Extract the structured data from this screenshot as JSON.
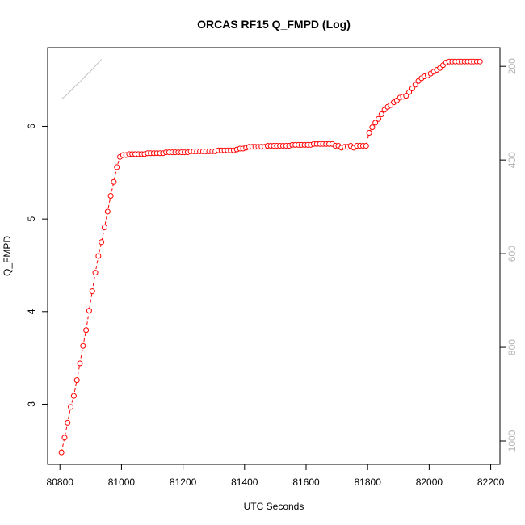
{
  "chart_data": {
    "type": "line",
    "title": "ORCAS RF15 Q_FMPD (Log)",
    "xlabel": "UTC Seconds",
    "ylabel": "Q_FMPD",
    "xlim": [
      80760,
      82230
    ],
    "ylim": [
      2.35,
      6.85
    ],
    "y2lim": [
      1050,
      160
    ],
    "x_ticks": [
      80800,
      81000,
      81200,
      81400,
      81600,
      81800,
      82000,
      82200
    ],
    "y_ticks": [
      3,
      4,
      5,
      6
    ],
    "y2_ticks": [
      200,
      400,
      600,
      800,
      1000
    ],
    "grid": false,
    "series": [
      {
        "color": "#ff0000",
        "marker": "open-circle",
        "line_style": "dashed",
        "axis": "left",
        "x": [
          80805,
          80815,
          80825,
          80835,
          80845,
          80855,
          80865,
          80875,
          80885,
          80895,
          80905,
          80915,
          80925,
          80935,
          80945,
          80955,
          80965,
          80975,
          80985,
          80995,
          81005,
          81015,
          81025,
          81035,
          81045,
          81055,
          81065,
          81075,
          81085,
          81095,
          81105,
          81115,
          81125,
          81135,
          81145,
          81155,
          81165,
          81175,
          81185,
          81195,
          81205,
          81215,
          81225,
          81235,
          81245,
          81255,
          81265,
          81275,
          81285,
          81295,
          81305,
          81315,
          81325,
          81335,
          81345,
          81355,
          81365,
          81375,
          81385,
          81395,
          81405,
          81415,
          81425,
          81435,
          81445,
          81455,
          81465,
          81475,
          81485,
          81495,
          81505,
          81515,
          81525,
          81535,
          81545,
          81555,
          81565,
          81575,
          81585,
          81595,
          81605,
          81615,
          81625,
          81635,
          81645,
          81655,
          81665,
          81675,
          81685,
          81695,
          81705,
          81715,
          81725,
          81735,
          81745,
          81755,
          81765,
          81775,
          81785,
          81795,
          81805,
          81815,
          81825,
          81835,
          81845,
          81855,
          81865,
          81875,
          81885,
          81895,
          81905,
          81915,
          81925,
          81935,
          81945,
          81955,
          81965,
          81975,
          81985,
          81995,
          82005,
          82015,
          82025,
          82035,
          82045,
          82055,
          82065,
          82075,
          82085,
          82095,
          82105,
          82115,
          82125,
          82135,
          82145,
          82155,
          82165
        ],
        "y": [
          2.48,
          2.64,
          2.8,
          2.97,
          3.09,
          3.26,
          3.44,
          3.63,
          3.8,
          4.01,
          4.22,
          4.42,
          4.6,
          4.75,
          4.91,
          5.08,
          5.25,
          5.4,
          5.56,
          5.67,
          5.69,
          5.69,
          5.7,
          5.7,
          5.7,
          5.7,
          5.7,
          5.7,
          5.71,
          5.71,
          5.71,
          5.71,
          5.71,
          5.71,
          5.72,
          5.72,
          5.72,
          5.72,
          5.72,
          5.72,
          5.72,
          5.72,
          5.73,
          5.73,
          5.73,
          5.73,
          5.73,
          5.73,
          5.73,
          5.73,
          5.73,
          5.74,
          5.74,
          5.74,
          5.74,
          5.74,
          5.74,
          5.75,
          5.76,
          5.76,
          5.77,
          5.78,
          5.78,
          5.78,
          5.78,
          5.78,
          5.78,
          5.79,
          5.79,
          5.79,
          5.79,
          5.79,
          5.79,
          5.79,
          5.79,
          5.8,
          5.8,
          5.8,
          5.8,
          5.8,
          5.8,
          5.8,
          5.81,
          5.81,
          5.81,
          5.81,
          5.81,
          5.81,
          5.81,
          5.79,
          5.79,
          5.77,
          5.78,
          5.78,
          5.79,
          5.77,
          5.79,
          5.79,
          5.79,
          5.79,
          5.93,
          5.99,
          6.04,
          6.08,
          6.13,
          6.18,
          6.21,
          6.23,
          6.26,
          6.28,
          6.31,
          6.32,
          6.33,
          6.37,
          6.41,
          6.45,
          6.49,
          6.52,
          6.54,
          6.55,
          6.57,
          6.59,
          6.61,
          6.63,
          6.66,
          6.69,
          6.7,
          6.7,
          6.7,
          6.7,
          6.7,
          6.7,
          6.7,
          6.7,
          6.7,
          6.7,
          6.7
        ]
      },
      {
        "color": "#bfbfbf",
        "marker": "none",
        "line_style": "solid",
        "axis": "right",
        "x": [
          80805,
          80820,
          80835,
          80850,
          80865,
          80880,
          80895,
          80910,
          80925,
          80935
        ],
        "y": [
          270,
          262,
          252,
          242,
          233,
          223,
          213,
          203,
          192,
          185
        ]
      }
    ]
  }
}
